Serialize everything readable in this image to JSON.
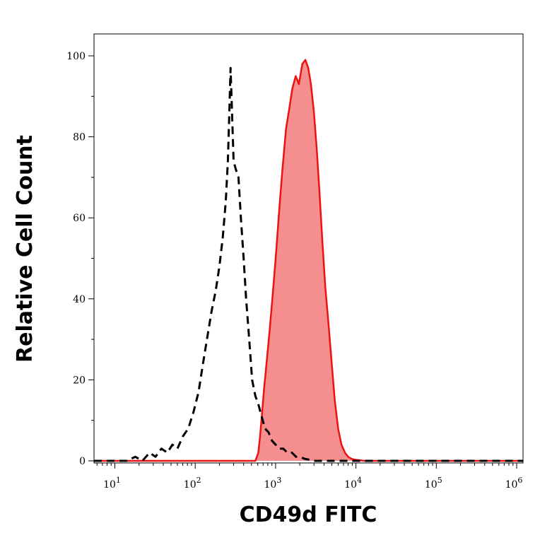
{
  "chart_data": {
    "type": "area",
    "xlabel": "CD49d FITC",
    "ylabel": "Relative Cell Count",
    "x_scale": "log",
    "xlim": [
      5.5,
      1200000
    ],
    "ylim": [
      0,
      103
    ],
    "x_ticks": [
      {
        "value": 10,
        "base": "10",
        "exp": "1"
      },
      {
        "value": 100,
        "base": "10",
        "exp": "2"
      },
      {
        "value": 1000,
        "base": "10",
        "exp": "3"
      },
      {
        "value": 10000,
        "base": "10",
        "exp": "4"
      },
      {
        "value": 100000,
        "base": "10",
        "exp": "5"
      },
      {
        "value": 1000000,
        "base": "10",
        "exp": "6"
      }
    ],
    "y_ticks": [
      {
        "value": 0,
        "label": "0"
      },
      {
        "value": 20,
        "label": "20"
      },
      {
        "value": 40,
        "label": "40"
      },
      {
        "value": 60,
        "label": "60"
      },
      {
        "value": 80,
        "label": "80"
      },
      {
        "value": 100,
        "label": "100"
      }
    ],
    "grid": false,
    "series": [
      {
        "style": "dashed-line",
        "color": "#000000",
        "x": [
          5.5,
          14,
          18,
          22,
          27,
          32,
          38,
          45,
          52,
          60,
          70,
          82,
          95,
          110,
          125,
          140,
          160,
          180,
          200,
          220,
          240,
          255,
          265,
          275,
          285,
          300,
          320,
          345,
          370,
          400,
          430,
          470,
          510,
          560,
          610,
          670,
          740,
          820,
          900,
          1000,
          1120,
          1250,
          1400,
          1600,
          1800,
          2000,
          2300,
          2600,
          3000,
          1200000
        ],
        "y": [
          0,
          0,
          1,
          0,
          2,
          1,
          3,
          2,
          4,
          3,
          6,
          8,
          12,
          17,
          24,
          30,
          37,
          42,
          48,
          55,
          64,
          74,
          85,
          97,
          88,
          74,
          72,
          70,
          60,
          50,
          40,
          30,
          20,
          16,
          14,
          11,
          8,
          7,
          5,
          4,
          3,
          3,
          2,
          2,
          1,
          1,
          0.5,
          0.3,
          0,
          0
        ]
      },
      {
        "style": "filled-area",
        "color": "#ee1111",
        "fill": "#f58f8f",
        "x": [
          5.5,
          560,
          610,
          640,
          680,
          720,
          780,
          850,
          930,
          1020,
          1120,
          1230,
          1350,
          1480,
          1620,
          1780,
          1950,
          2150,
          2350,
          2550,
          2750,
          3000,
          3250,
          3500,
          3800,
          4150,
          4500,
          4950,
          5450,
          6000,
          6600,
          7300,
          8000,
          8800,
          9600,
          10500,
          11500,
          13000,
          1200000
        ],
        "y": [
          0,
          0,
          2,
          6,
          12,
          18,
          25,
          33,
          42,
          52,
          63,
          73,
          82,
          87,
          92,
          95,
          93,
          98,
          99,
          97,
          93,
          86,
          77,
          67,
          55,
          43,
          35,
          25,
          15,
          8,
          4,
          2,
          1,
          0.5,
          0.3,
          0.2,
          0.1,
          0,
          0
        ]
      }
    ]
  }
}
